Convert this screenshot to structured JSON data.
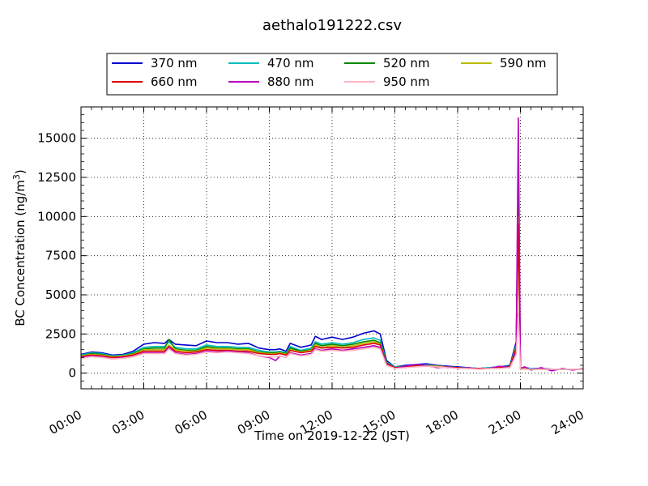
{
  "chart_data": {
    "type": "line",
    "title": "aethalo191222.csv",
    "xlabel": "Time on 2019-12-22 (JST)",
    "ylabel": "BC Concentration (ng/m",
    "ylabel_sup": "3",
    "ylabel_end": ")",
    "x_unit": "hours",
    "xlim": [
      0,
      24
    ],
    "ylim": [
      -1000,
      17000
    ],
    "x_ticks": [
      0,
      3,
      6,
      9,
      12,
      15,
      18,
      21,
      24
    ],
    "x_tick_labels": [
      "00:00",
      "03:00",
      "06:00",
      "09:00",
      "12:00",
      "15:00",
      "18:00",
      "21:00",
      "24:00"
    ],
    "y_ticks": [
      0,
      2500,
      5000,
      7500,
      10000,
      12500,
      15000
    ],
    "y_tick_labels": [
      "0",
      "2500",
      "5000",
      "7500",
      "10000",
      "12500",
      "15000"
    ],
    "grid": true,
    "legend_position": "above plot",
    "x": [
      0,
      0.5,
      1,
      1.5,
      2,
      2.5,
      3,
      3.5,
      4,
      4.2,
      4.5,
      5,
      5.5,
      6,
      6.5,
      7,
      7.5,
      8,
      8.5,
      9,
      9.3,
      9.5,
      9.8,
      10,
      10.5,
      11,
      11.2,
      11.5,
      12,
      12.5,
      13,
      13.5,
      14,
      14.3,
      14.6,
      15,
      15.5,
      16,
      16.5,
      17,
      17.5,
      18,
      18.5,
      19,
      19.5,
      20,
      20.5,
      20.8,
      20.9,
      21.0,
      21.2,
      21.5,
      22,
      22.5,
      23,
      23.5,
      24
    ],
    "series": [
      {
        "name": "370 nm",
        "color": "#0000cc",
        "values": [
          1200,
          1350,
          1300,
          1150,
          1200,
          1400,
          1850,
          1950,
          1900,
          2150,
          1850,
          1800,
          1750,
          2050,
          1950,
          1950,
          1850,
          1900,
          1600,
          1500,
          1500,
          1550,
          1400,
          1900,
          1650,
          1800,
          2350,
          2150,
          2300,
          2150,
          2300,
          2550,
          2700,
          2500,
          800,
          400,
          500,
          550,
          600,
          500,
          450,
          400,
          350,
          300,
          350,
          400,
          500,
          2000,
          12500,
          300,
          350,
          300,
          300,
          250,
          250,
          250,
          250
        ]
      },
      {
        "name": "470 nm",
        "color": "#00bbbb",
        "values": [
          1150,
          1300,
          1250,
          1100,
          1150,
          1300,
          1650,
          1700,
          1700,
          2000,
          1650,
          1550,
          1550,
          1800,
          1700,
          1700,
          1650,
          1650,
          1450,
          1350,
          1350,
          1400,
          1300,
          1700,
          1450,
          1600,
          2000,
          1850,
          1950,
          1850,
          1950,
          2150,
          2250,
          2100,
          700,
          400,
          450,
          500,
          550,
          450,
          400,
          350,
          350,
          300,
          350,
          400,
          450,
          1800,
          11000,
          300,
          300,
          300,
          250,
          250,
          250,
          250,
          250
        ]
      },
      {
        "name": "520 nm",
        "color": "#008800",
        "values": [
          1100,
          1250,
          1200,
          1050,
          1100,
          1250,
          1550,
          1600,
          1600,
          2150,
          1550,
          1450,
          1450,
          1700,
          1600,
          1600,
          1550,
          1550,
          1350,
          1300,
          1300,
          1350,
          1250,
          1600,
          1400,
          1500,
          1900,
          1750,
          1850,
          1750,
          1850,
          2000,
          2100,
          1950,
          650,
          350,
          450,
          500,
          500,
          450,
          400,
          350,
          300,
          300,
          300,
          350,
          450,
          1700,
          10500,
          300,
          300,
          250,
          250,
          250,
          250,
          250,
          250
        ]
      },
      {
        "name": "590 nm",
        "color": "#bbbb00",
        "values": [
          1100,
          1200,
          1150,
          1050,
          1100,
          1200,
          1500,
          1500,
          1500,
          1800,
          1500,
          1400,
          1400,
          1600,
          1550,
          1550,
          1500,
          1500,
          1300,
          1250,
          1250,
          1300,
          1200,
          1500,
          1350,
          1450,
          1800,
          1650,
          1750,
          1650,
          1750,
          1900,
          2000,
          1850,
          600,
          350,
          400,
          450,
          500,
          450,
          400,
          350,
          300,
          300,
          300,
          350,
          400,
          1700,
          10000,
          300,
          300,
          250,
          250,
          250,
          250,
          250,
          250
        ]
      },
      {
        "name": "660 nm",
        "color": "#dd0000",
        "values": [
          1050,
          1150,
          1100,
          1000,
          1050,
          1150,
          1400,
          1400,
          1400,
          1700,
          1400,
          1300,
          1350,
          1500,
          1450,
          1450,
          1400,
          1400,
          1250,
          1200,
          1200,
          1250,
          1150,
          1450,
          1300,
          1400,
          1700,
          1600,
          1650,
          1600,
          1650,
          1800,
          1900,
          1800,
          600,
          350,
          400,
          450,
          450,
          400,
          350,
          350,
          300,
          300,
          300,
          350,
          400,
          1600,
          9500,
          300,
          250,
          250,
          250,
          250,
          250,
          250,
          250
        ]
      },
      {
        "name": "880 nm",
        "color": "#bb00bb",
        "values": [
          1000,
          1100,
          1050,
          900,
          1000,
          1050,
          1300,
          1300,
          1300,
          1650,
          1300,
          1200,
          1250,
          1400,
          1350,
          1400,
          1350,
          1300,
          1100,
          1000,
          800,
          1100,
          1000,
          1300,
          1150,
          1250,
          1550,
          1450,
          1550,
          1450,
          1550,
          1650,
          1750,
          1650,
          550,
          300,
          450,
          550,
          500,
          350,
          400,
          300,
          350,
          250,
          300,
          450,
          350,
          1400,
          16300,
          300,
          400,
          200,
          350,
          150,
          300,
          200,
          300
        ]
      },
      {
        "name": "950 nm",
        "color": "#ffb6c1",
        "values": [
          950,
          1050,
          1000,
          900,
          950,
          1050,
          1250,
          1250,
          1250,
          1550,
          1250,
          1150,
          1200,
          1350,
          1300,
          1350,
          1300,
          1250,
          1100,
          1050,
          1050,
          1100,
          1000,
          1250,
          1100,
          1200,
          1500,
          1400,
          1450,
          1400,
          1450,
          1550,
          1650,
          1550,
          500,
          300,
          350,
          400,
          450,
          400,
          350,
          300,
          300,
          250,
          300,
          300,
          350,
          1200,
          3800,
          250,
          250,
          250,
          250,
          250,
          250,
          250,
          250
        ]
      }
    ]
  }
}
